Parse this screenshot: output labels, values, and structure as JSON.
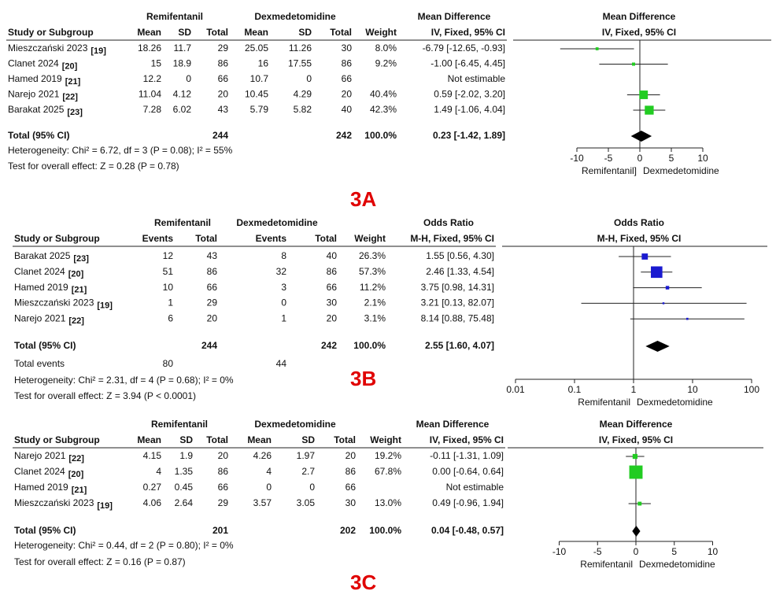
{
  "panels": [
    {
      "label": "3A",
      "group_headers": [
        "Remifentanil",
        "Dexmedetomidine"
      ],
      "effect_header": "Mean Difference",
      "plot_header": "Mean Difference",
      "plot_method": "IV, Fixed, 95% CI",
      "columns": [
        "Study or Subgroup",
        "Mean",
        "SD",
        "Total",
        "Mean",
        "SD",
        "Total",
        "Weight",
        "IV, Fixed, 95% CI"
      ],
      "studies": [
        {
          "name": "Mieszczański 2023",
          "ref": "[19]",
          "cells": [
            "18.26",
            "11.7",
            "29",
            "25.05",
            "11.26",
            "30",
            "8.0%",
            "-6.79 [-12.65, -0.93]"
          ],
          "estimate": -6.79,
          "ci": [
            -12.65,
            -0.93
          ],
          "weight": 8.0
        },
        {
          "name": "Clanet 2024",
          "ref": "[20]",
          "cells": [
            "15",
            "18.9",
            "86",
            "16",
            "17.55",
            "86",
            "9.2%",
            "-1.00 [-6.45, 4.45]"
          ],
          "estimate": -1.0,
          "ci": [
            -6.45,
            4.45
          ],
          "weight": 9.2
        },
        {
          "name": "Hamed 2019",
          "ref": "[21]",
          "cells": [
            "12.2",
            "0",
            "66",
            "10.7",
            "0",
            "66",
            null,
            "Not estimable"
          ],
          "estimate": null,
          "ci": null,
          "weight": null
        },
        {
          "name": "Narejo 2021",
          "ref": "[22]",
          "cells": [
            "11.04",
            "4.12",
            "20",
            "10.45",
            "4.29",
            "20",
            "40.4%",
            "0.59 [-2.02, 3.20]"
          ],
          "estimate": 0.59,
          "ci": [
            -2.02,
            3.2
          ],
          "weight": 40.4
        },
        {
          "name": "Barakat 2025",
          "ref": "[23]",
          "cells": [
            "7.28",
            "6.02",
            "43",
            "5.79",
            "5.82",
            "40",
            "42.3%",
            "1.49 [-1.06, 4.04]"
          ],
          "estimate": 1.49,
          "ci": [
            -1.06,
            4.04
          ],
          "weight": 42.3
        }
      ],
      "total": {
        "name": "Total (95% CI)",
        "n1": "244",
        "n2": "242",
        "weight": "100.0%",
        "effect": "0.23 [-1.42, 1.89]",
        "estimate": 0.23,
        "ci": [
          -1.42,
          1.89
        ]
      },
      "heterogeneity": "Heterogeneity: Chi² = 6.72, df = 3 (P = 0.08); I² = 55%",
      "overall_effect": "Test for overall effect: Z = 0.28 (P = 0.78)",
      "axis": {
        "log": false,
        "xlim": [
          -20,
          20
        ],
        "xticks": [
          -10,
          -5,
          0,
          5,
          10
        ],
        "favors": [
          "Remifentanil]",
          "Dexmedetomidine"
        ]
      },
      "marker_color": "#22cc22"
    },
    {
      "label": "3B",
      "group_headers": [
        "Remifentanil",
        "Dexmedetomidine"
      ],
      "effect_header": "Odds Ratio",
      "plot_header": "Odds Ratio",
      "plot_method": "M-H, Fixed, 95% CI",
      "columns": [
        "Study or Subgroup",
        "Events",
        "Total",
        "Events",
        "Total",
        "Weight",
        "M-H, Fixed, 95% CI"
      ],
      "studies": [
        {
          "name": "Barakat 2025",
          "ref": "[23]",
          "cells": [
            "12",
            "43",
            "8",
            "40",
            "26.3%",
            "1.55 [0.56, 4.30]"
          ],
          "estimate": 1.55,
          "ci": [
            0.56,
            4.3
          ],
          "weight": 26.3
        },
        {
          "name": "Clanet 2024",
          "ref": "[20]",
          "cells": [
            "51",
            "86",
            "32",
            "86",
            "57.3%",
            "2.46 [1.33, 4.54]"
          ],
          "estimate": 2.46,
          "ci": [
            1.33,
            4.54
          ],
          "weight": 57.3
        },
        {
          "name": "Hamed 2019",
          "ref": "[21]",
          "cells": [
            "10",
            "66",
            "3",
            "66",
            "11.2%",
            "3.75 [0.98, 14.31]"
          ],
          "estimate": 3.75,
          "ci": [
            0.98,
            14.31
          ],
          "weight": 11.2
        },
        {
          "name": "Mieszczański 2023",
          "ref": "[19]",
          "cells": [
            "1",
            "29",
            "0",
            "30",
            "2.1%",
            "3.21 [0.13, 82.07]"
          ],
          "estimate": 3.21,
          "ci": [
            0.13,
            82.07
          ],
          "weight": 2.1
        },
        {
          "name": "Narejo 2021",
          "ref": "[22]",
          "cells": [
            "6",
            "20",
            "1",
            "20",
            "3.1%",
            "8.14 [0.88, 75.48]"
          ],
          "estimate": 8.14,
          "ci": [
            0.88,
            75.48
          ],
          "weight": 3.1
        }
      ],
      "total": {
        "name": "Total (95% CI)",
        "n1": "244",
        "n2": "242",
        "weight": "100.0%",
        "effect": "2.55 [1.60, 4.07]",
        "estimate": 2.55,
        "ci": [
          1.6,
          4.07
        ]
      },
      "total_events": {
        "label": "Total events",
        "values": [
          "80",
          "44"
        ]
      },
      "heterogeneity": "Heterogeneity: Chi² = 2.31, df = 4 (P = 0.68); I² = 0%",
      "overall_effect": "Test for overall effect: Z = 3.94 (P < 0.0001)",
      "axis": {
        "log": true,
        "xlim": [
          0.01,
          100
        ],
        "xticks": [
          0.01,
          0.1,
          1,
          10,
          100
        ],
        "favors": [
          "Remifentanil",
          "Dexmedetomidine"
        ]
      },
      "marker_color": "#1a1ad0"
    },
    {
      "label": "3C",
      "group_headers": [
        "Remifentanil",
        "Dexmedetomidine"
      ],
      "effect_header": "Mean Difference",
      "plot_header": "Mean Difference",
      "plot_method": "IV, Fixed, 95% CI",
      "columns": [
        "Study or Subgroup",
        "Mean",
        "SD",
        "Total",
        "Mean",
        "SD",
        "Total",
        "Weight",
        "IV, Fixed, 95% CI"
      ],
      "studies": [
        {
          "name": "Narejo 2021",
          "ref": "[22]",
          "cells": [
            "4.15",
            "1.9",
            "20",
            "4.26",
            "1.97",
            "20",
            "19.2%",
            "-0.11 [-1.31, 1.09]"
          ],
          "estimate": -0.11,
          "ci": [
            -1.31,
            1.09
          ],
          "weight": 19.2
        },
        {
          "name": "Clanet 2024",
          "ref": "[20]",
          "cells": [
            "4",
            "1.35",
            "86",
            "4",
            "2.7",
            "86",
            "67.8%",
            "0.00 [-0.64, 0.64]"
          ],
          "estimate": 0.0,
          "ci": [
            -0.64,
            0.64
          ],
          "weight": 67.8
        },
        {
          "name": "Hamed 2019",
          "ref": "[21]",
          "cells": [
            "0.27",
            "0.45",
            "66",
            "0",
            "0",
            "66",
            null,
            "Not estimable"
          ],
          "estimate": null,
          "ci": null,
          "weight": null
        },
        {
          "name": "Mieszczański 2023",
          "ref": "[19]",
          "cells": [
            "4.06",
            "2.64",
            "29",
            "3.57",
            "3.05",
            "30",
            "13.0%",
            "0.49 [-0.96, 1.94]"
          ],
          "estimate": 0.49,
          "ci": [
            -0.96,
            1.94
          ],
          "weight": 13.0
        }
      ],
      "total": {
        "name": "Total (95% CI)",
        "n1": "201",
        "n2": "202",
        "weight": "100.0%",
        "effect": "0.04 [-0.48, 0.57]",
        "estimate": 0.04,
        "ci": [
          -0.48,
          0.57
        ]
      },
      "heterogeneity": "Heterogeneity: Chi² = 0.44, df = 2 (P = 0.80); I² = 0%",
      "overall_effect": "Test for overall effect: Z = 0.16 (P = 0.87)",
      "axis": {
        "log": false,
        "xlim": [
          -16,
          16
        ],
        "xticks": [
          -10,
          -5,
          0,
          5,
          10
        ],
        "favors": [
          "Remifentanil",
          "Dexmedetomidine"
        ]
      },
      "marker_color": "#22cc22"
    }
  ]
}
